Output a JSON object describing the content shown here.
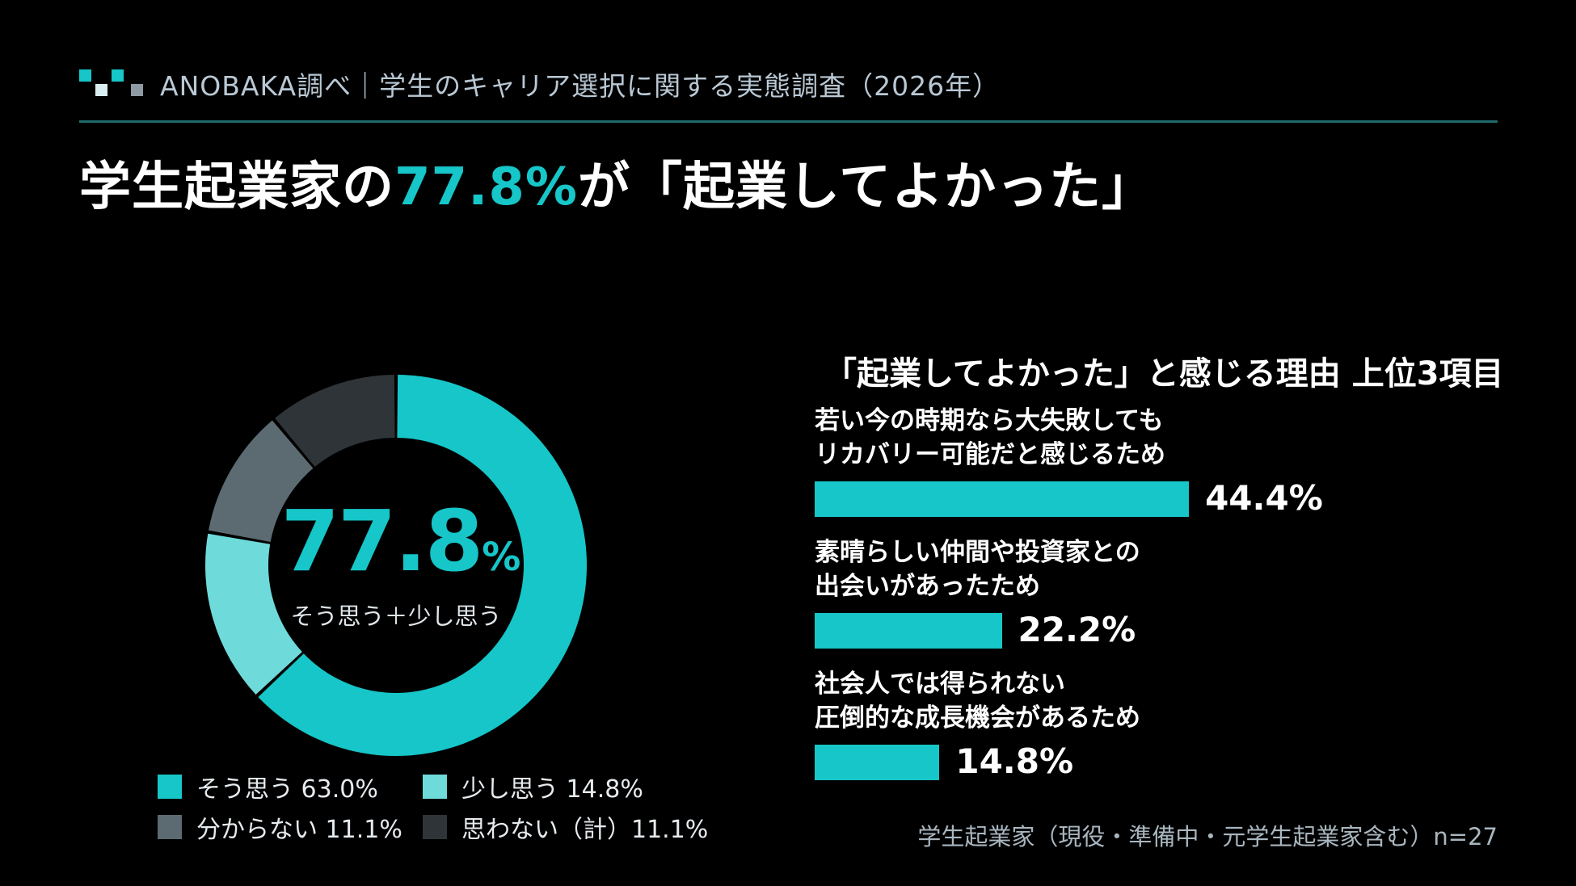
{
  "header": {
    "text": "ANOBAKA調べ｜学生のキャリア選択に関する実態調査（2026年）"
  },
  "title": {
    "prefix": "学生起業家の",
    "highlight": "77.8%",
    "suffix": "が「起業してよかった」"
  },
  "colors": {
    "accent": "#16c6c8",
    "light": "#6fdada",
    "gray": "#5c6a72",
    "dark": "#2f3438",
    "background": "#000000"
  },
  "chart_data": [
    {
      "type": "pie",
      "subtype": "donut",
      "center_value": "77.8",
      "center_unit": "%",
      "center_caption": "そう思う＋少し思う",
      "slices": [
        {
          "label": "そう思う",
          "value": 63.0,
          "color": "#16c6c8",
          "legend": "そう思う 63.0%"
        },
        {
          "label": "少し思う",
          "value": 14.8,
          "color": "#6fdada",
          "legend": "少し思う 14.8%"
        },
        {
          "label": "分からない",
          "value": 11.1,
          "color": "#5c6a72",
          "legend": "分からない 11.1%"
        },
        {
          "label": "思わない（計）",
          "value": 11.1,
          "color": "#2f3438",
          "legend": "思わない（計）11.1%"
        }
      ]
    },
    {
      "type": "bar",
      "orientation": "horizontal",
      "title": "「起業してよかった」と感じる理由 上位3項目",
      "categories": [
        "若い今の時期なら大失敗しても\nリカバリー可能だと感じるため",
        "素晴らしい仲間や投資家との\n出会いがあったため",
        "社会人では得られない\n圧倒的な成長機会があるため"
      ],
      "values": [
        44.4,
        22.2,
        14.8
      ],
      "value_labels": [
        "44.4%",
        "22.2%",
        "14.8%"
      ],
      "xlim": [
        0,
        100
      ]
    }
  ],
  "footnote": "学生起業家（現役・準備中・元学生起業家含む）n=27"
}
